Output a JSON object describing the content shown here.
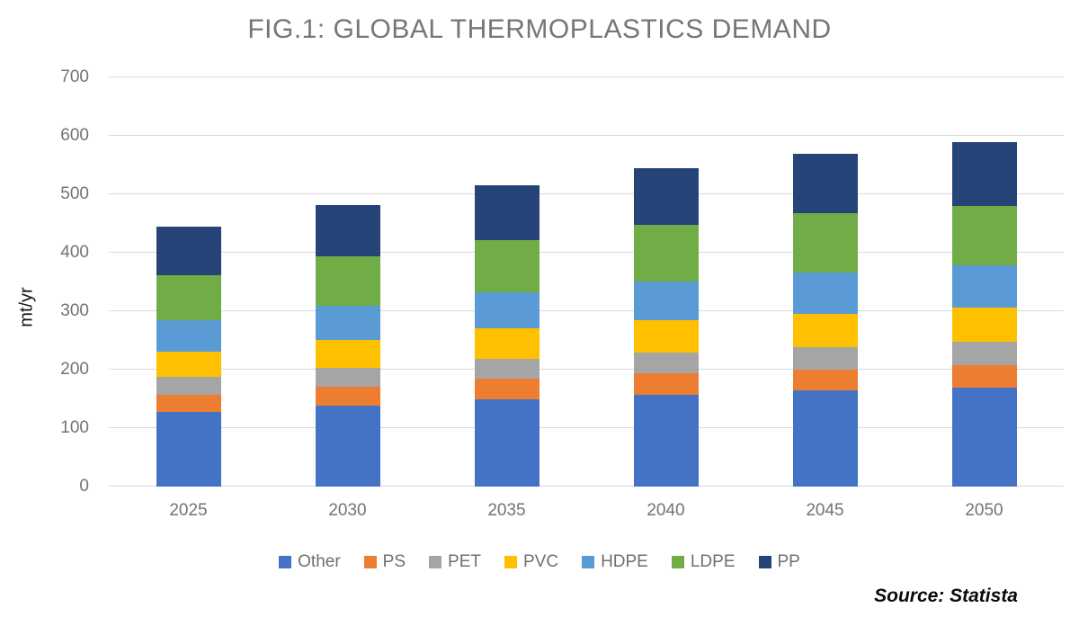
{
  "chart_data": {
    "type": "bar",
    "variant": "stacked-column",
    "title": "FIG.1: GLOBAL THERMOPLASTICS DEMAND",
    "ylabel": "mt/yr",
    "xlabel": "",
    "source": "Source: Statista",
    "categories": [
      "2025",
      "2030",
      "2035",
      "2040",
      "2045",
      "2050"
    ],
    "ylim": [
      0,
      700
    ],
    "ytick_step": 100,
    "grid": true,
    "legend_position": "bottom",
    "series": [
      {
        "name": "Other",
        "color": "#4472C4",
        "values": [
          128,
          139,
          149,
          157,
          165,
          170
        ]
      },
      {
        "name": "PS",
        "color": "#ED7D31",
        "values": [
          29,
          32,
          35,
          37,
          35,
          37
        ]
      },
      {
        "name": "PET",
        "color": "#A5A5A5",
        "values": [
          30,
          32,
          34,
          36,
          39,
          40
        ]
      },
      {
        "name": "PVC",
        "color": "#FFC000",
        "values": [
          44,
          48,
          53,
          54,
          56,
          59
        ]
      },
      {
        "name": "HDPE",
        "color": "#5B9BD5",
        "values": [
          54,
          58,
          62,
          67,
          71,
          72
        ]
      },
      {
        "name": "LDPE",
        "color": "#70AD47",
        "values": [
          77,
          85,
          88,
          96,
          101,
          102
        ]
      },
      {
        "name": "PP",
        "color": "#264478",
        "values": [
          83,
          88,
          95,
          98,
          103,
          109
        ]
      }
    ],
    "totals": [
      445,
      482,
      516,
      545,
      570,
      589
    ],
    "colors": {
      "title_text": "#767676",
      "axis_text": "#737373",
      "gridline": "#D9D9D9",
      "ylabel_text": "#141414",
      "source_text": "#0B0B0B"
    }
  }
}
